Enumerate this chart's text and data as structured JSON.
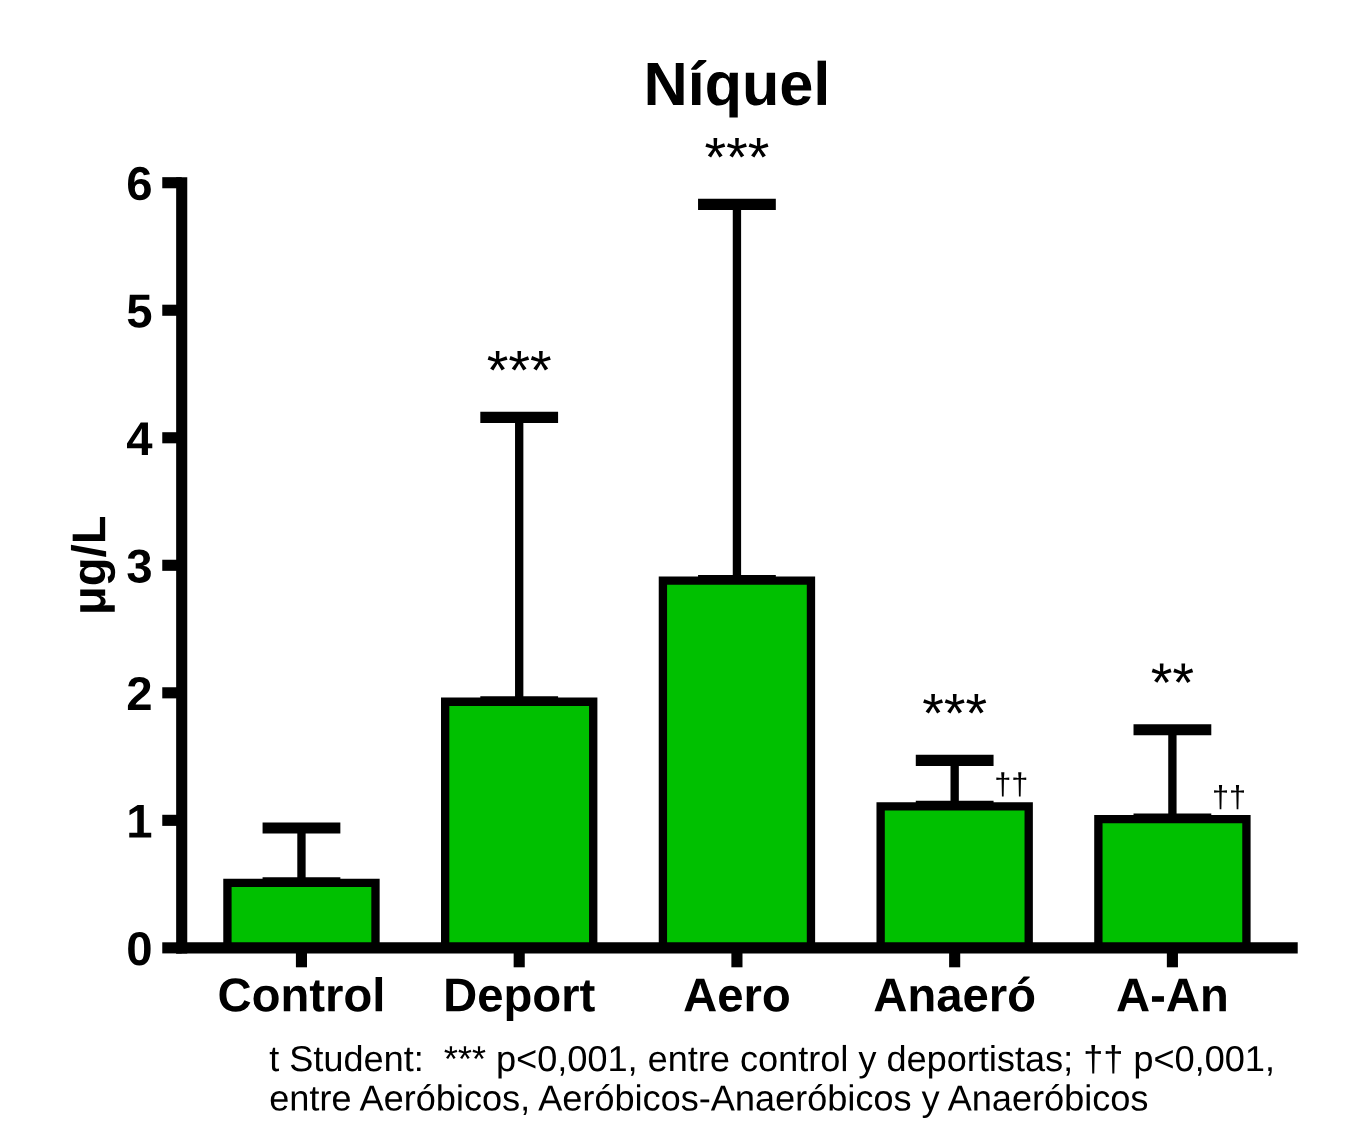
{
  "chart_data": {
    "type": "bar",
    "title": "Níquel",
    "ylabel": "μg/L",
    "categories": [
      "Control",
      "Deport",
      "Aero",
      "Anaeró",
      "A-An"
    ],
    "values": [
      0.51,
      1.93,
      2.88,
      1.11,
      1.01
    ],
    "errors": [
      [
        0.51,
        0.94
      ],
      [
        1.93,
        4.16
      ],
      [
        2.88,
        5.83
      ],
      [
        1.11,
        1.47
      ],
      [
        1.01,
        1.71
      ]
    ],
    "color": "#00c000",
    "ylim": [
      0,
      6
    ],
    "yticks": [
      0,
      1,
      2,
      3,
      4,
      5,
      6
    ],
    "grid": false,
    "legend": false,
    "annotations": [
      {
        "text": "***",
        "x": "Deport",
        "y": 4.16
      },
      {
        "text": "***",
        "x": "Aero",
        "y": 5.83
      },
      {
        "text": "***",
        "x": "Anaeró",
        "y": 1.47
      },
      {
        "text": "**",
        "x": "A-An",
        "y": 1.71
      },
      {
        "text": "††",
        "x": "Anaeró",
        "y": 1.11
      },
      {
        "text": "††",
        "x": "A-An",
        "y": 1.01
      },
      "t Student:  *** p<0,001, entre control y deportistas; †† p<0,001, entre Aeróbicos, Aeróbicos-Anaeróbicos y Anaeróbicos"
    ]
  }
}
